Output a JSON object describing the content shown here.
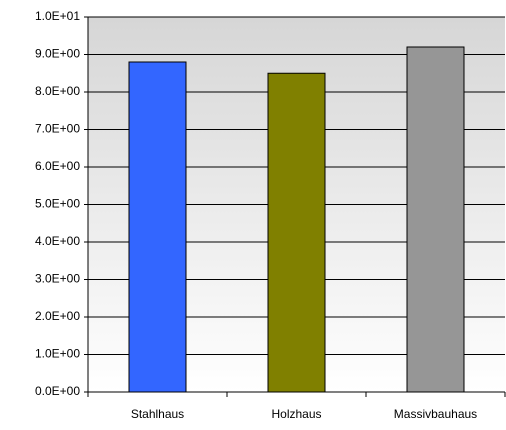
{
  "chart_data": {
    "type": "bar",
    "categories": [
      "Stahlhaus",
      "Holzhaus",
      "Massivbauhaus"
    ],
    "values": [
      8.8,
      8.5,
      9.2
    ],
    "colors": [
      "#3366ff",
      "#808000",
      "#969696"
    ],
    "ylim": [
      0,
      10
    ],
    "yticks": [
      {
        "value": 0,
        "label": "0.0E+00"
      },
      {
        "value": 1,
        "label": "1.0E+00"
      },
      {
        "value": 2,
        "label": "2.0E+00"
      },
      {
        "value": 3,
        "label": "3.0E+00"
      },
      {
        "value": 4,
        "label": "4.0E+00"
      },
      {
        "value": 5,
        "label": "5.0E+00"
      },
      {
        "value": 6,
        "label": "6.0E+00"
      },
      {
        "value": 7,
        "label": "7.0E+00"
      },
      {
        "value": 8,
        "label": "8.0E+00"
      },
      {
        "value": 9,
        "label": "9.0E+00"
      },
      {
        "value": 10,
        "label": "1.0E+01"
      }
    ],
    "grid": true
  }
}
